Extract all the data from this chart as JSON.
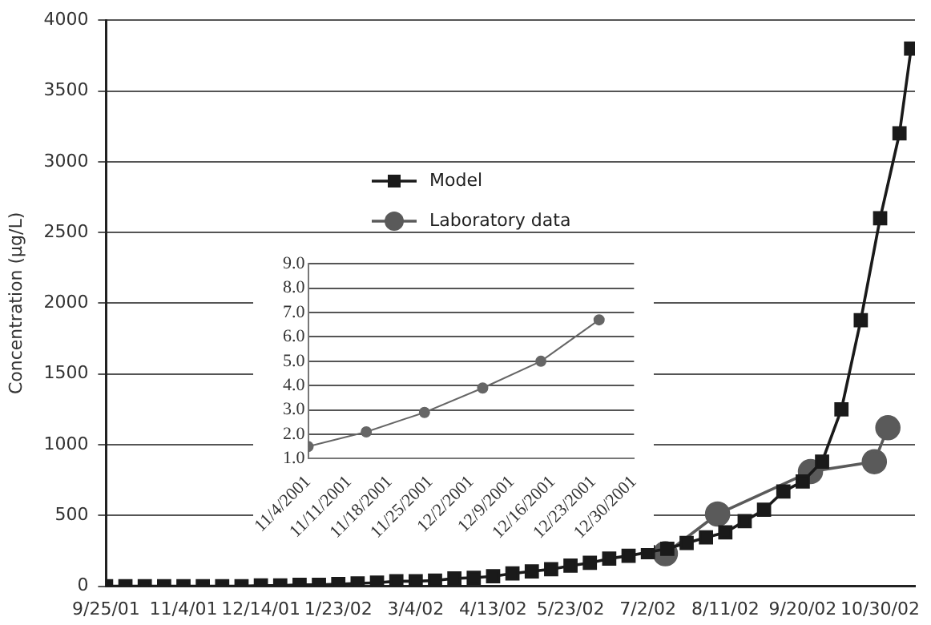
{
  "chart_data": [
    {
      "type": "line",
      "ylabel": "Concentration (μg/L)",
      "xlim": [
        "2001-09-25",
        "2002-11-17"
      ],
      "xticks": [
        {
          "value": "2001-09-25",
          "label": "9/25/01"
        },
        {
          "value": "2001-11-04",
          "label": "11/4/01"
        },
        {
          "value": "2001-12-14",
          "label": "12/14/01"
        },
        {
          "value": "2002-01-23",
          "label": "1/23/02"
        },
        {
          "value": "2002-03-04",
          "label": "3/4/02"
        },
        {
          "value": "2002-04-13",
          "label": "4/13/02"
        },
        {
          "value": "2002-05-23",
          "label": "5/23/02"
        },
        {
          "value": "2002-07-02",
          "label": "7/2/02"
        },
        {
          "value": "2002-08-11",
          "label": "8/11/02"
        },
        {
          "value": "2002-09-20",
          "label": "9/20/02"
        },
        {
          "value": "2002-10-30",
          "label": "10/30/02"
        }
      ],
      "ylim": [
        0,
        4000
      ],
      "yticks": [
        0,
        500,
        1000,
        1500,
        2000,
        2500,
        3000,
        3500,
        4000
      ],
      "grid": "y",
      "legend": "top left",
      "series": [
        {
          "name": "Model",
          "color": "#1a1a1a",
          "marker": "square",
          "x": [
            "2001-09-25",
            "2001-10-05",
            "2001-10-15",
            "2001-10-25",
            "2001-11-04",
            "2001-11-14",
            "2001-11-24",
            "2001-12-04",
            "2001-12-14",
            "2001-12-24",
            "2002-01-03",
            "2002-01-13",
            "2002-01-23",
            "2002-02-02",
            "2002-02-12",
            "2002-02-22",
            "2002-03-04",
            "2002-03-14",
            "2002-03-24",
            "2002-04-03",
            "2002-04-13",
            "2002-04-23",
            "2002-05-03",
            "2002-05-13",
            "2002-05-23",
            "2002-06-02",
            "2002-06-12",
            "2002-06-22",
            "2002-07-02",
            "2002-07-12",
            "2002-07-22",
            "2002-08-01",
            "2002-08-11",
            "2002-08-21",
            "2002-08-31",
            "2002-09-10",
            "2002-09-20",
            "2002-09-30",
            "2002-10-10",
            "2002-10-20",
            "2002-10-30",
            "2002-11-09",
            "2002-11-15"
          ],
          "values": [
            0,
            0,
            0,
            0,
            0,
            0,
            0,
            0,
            5,
            5,
            10,
            10,
            15,
            20,
            25,
            35,
            35,
            40,
            55,
            60,
            70,
            90,
            105,
            120,
            145,
            165,
            195,
            215,
            240,
            265,
            305,
            345,
            380,
            460,
            540,
            670,
            740,
            880,
            1250,
            1880,
            2600,
            3200,
            3800
          ]
        },
        {
          "name": "Laboratory data",
          "color": "#5a5a5a",
          "marker": "circle",
          "x": [
            "2002-07-11",
            "2002-08-07",
            "2002-09-24",
            "2002-10-27",
            "2002-11-03"
          ],
          "values": [
            230,
            510,
            810,
            880,
            1120
          ]
        }
      ]
    },
    {
      "type": "line",
      "xlim": [
        "2001-11-04",
        "2001-12-30"
      ],
      "xticks": [
        {
          "value": "2001-11-04",
          "label": "11/4/2001"
        },
        {
          "value": "2001-11-11",
          "label": "11/11/2001"
        },
        {
          "value": "2001-11-18",
          "label": "11/18/2001"
        },
        {
          "value": "2001-11-25",
          "label": "11/25/2001"
        },
        {
          "value": "2001-12-02",
          "label": "12/2/2001"
        },
        {
          "value": "2001-12-09",
          "label": "12/9/2001"
        },
        {
          "value": "2001-12-16",
          "label": "12/16/2001"
        },
        {
          "value": "2001-12-23",
          "label": "12/23/2001"
        },
        {
          "value": "2001-12-30",
          "label": "12/30/2001"
        }
      ],
      "ylim": [
        1,
        9
      ],
      "yticks": [
        {
          "value": 1,
          "label": "1.0"
        },
        {
          "value": 2,
          "label": "2.0"
        },
        {
          "value": 3,
          "label": "3.0"
        },
        {
          "value": 4,
          "label": "4.0"
        },
        {
          "value": 5,
          "label": "5.0"
        },
        {
          "value": 6,
          "label": "6.0"
        },
        {
          "value": 7,
          "label": "7.0"
        },
        {
          "value": 8,
          "label": "8.0"
        },
        {
          "value": 9,
          "label": "9.0"
        }
      ],
      "grid": "y",
      "series": [
        {
          "color": "#666666",
          "marker": "circle",
          "x": [
            "2001-11-04",
            "2001-11-14",
            "2001-11-24",
            "2001-12-04",
            "2001-12-14",
            "2001-12-24"
          ],
          "values": [
            1.5,
            2.1,
            2.9,
            3.9,
            5.0,
            6.7
          ]
        }
      ]
    }
  ]
}
